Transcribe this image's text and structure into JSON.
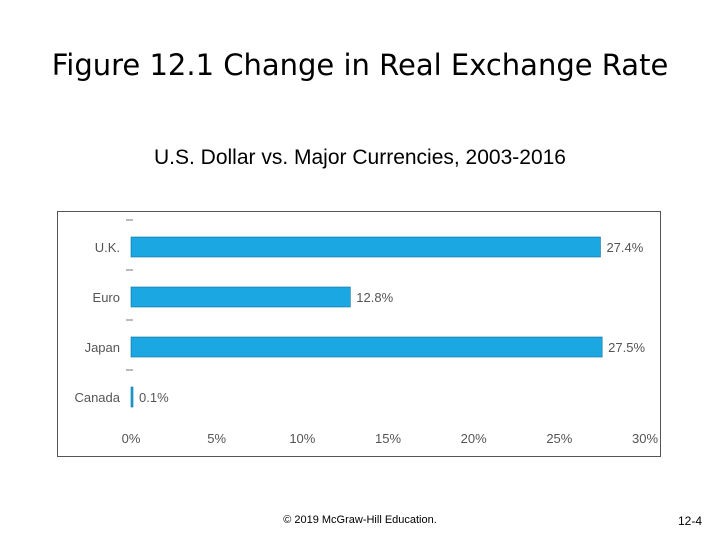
{
  "slide": {
    "title": "Figure 12.1 Change in Real Exchange Rate",
    "subtitle": "U.S. Dollar vs. Major Currencies, 2003-2016",
    "footer": "© 2019 McGraw-Hill Education.",
    "page_number": "12-4"
  },
  "chart_data": {
    "type": "bar",
    "orientation": "horizontal",
    "categories": [
      "U.K.",
      "Euro",
      "Japan",
      "Canada"
    ],
    "values": [
      27.4,
      12.8,
      27.5,
      0.1
    ],
    "value_labels": [
      "27.4%",
      "12.8%",
      "27.5%",
      "0.1%"
    ],
    "xlim": [
      0,
      30
    ],
    "xticks": [
      0,
      5,
      10,
      15,
      20,
      25,
      30
    ],
    "xtick_labels": [
      "0%",
      "5%",
      "10%",
      "15%",
      "20%",
      "25%",
      "30%"
    ],
    "grid": false,
    "bar_color": "#1aa7e2"
  }
}
